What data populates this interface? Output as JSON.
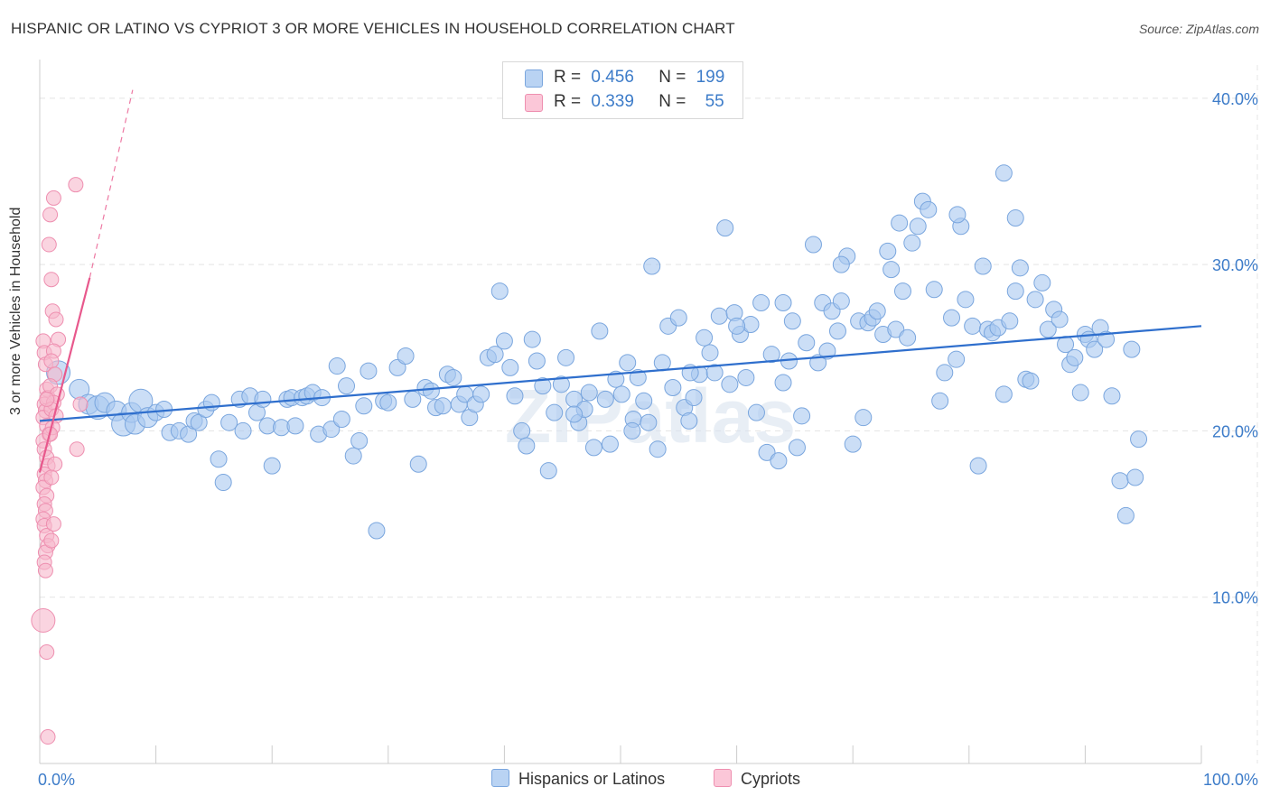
{
  "title": "HISPANIC OR LATINO VS CYPRIOT 3 OR MORE VEHICLES IN HOUSEHOLD CORRELATION CHART",
  "source": "Source: ZipAtlas.com",
  "watermark": "ZIPatlas",
  "legend": {
    "rows": [
      {
        "r_label": "R =",
        "r_value": "0.456",
        "n_label": "N =",
        "n_value": "199"
      },
      {
        "r_label": "R =",
        "r_value": "0.339",
        "n_label": "N =",
        "n_value": "55"
      }
    ]
  },
  "bottom_legend": {
    "series1": "Hispanics or Latinos",
    "series2": "Cypriots"
  },
  "colors": {
    "blue_fill": "#a9c8f0",
    "blue_stroke": "#7aa6de",
    "blue_line": "#2f6fcd",
    "pink_fill": "#f7b8cc",
    "pink_stroke": "#ee8fb0",
    "pink_line": "#e8588c",
    "axis_text": "#3d7cc9",
    "grid": "#e4e4e4"
  },
  "chart_data": {
    "type": "scatter",
    "title": "HISPANIC OR LATINO VS CYPRIOT 3 OR MORE VEHICLES IN HOUSEHOLD CORRELATION CHART",
    "xlabel": "",
    "ylabel": "3 or more Vehicles in Household",
    "xlim": [
      0,
      100
    ],
    "ylim": [
      0,
      42
    ],
    "x_tick_labels": [
      "0.0%",
      "100.0%"
    ],
    "y_ticks": [
      10,
      20,
      30,
      40
    ],
    "y_tick_labels": [
      "10.0%",
      "20.0%",
      "30.0%",
      "40.0%"
    ],
    "grid": true,
    "legend_position": "top-center",
    "series": [
      {
        "name": "Hispanics or Latinos",
        "R": 0.456,
        "N": 199,
        "trend": {
          "x": [
            0,
            100
          ],
          "y": [
            20.6,
            26.3
          ],
          "style": "solid"
        },
        "points": [
          [
            1.6,
            23.5
          ],
          [
            3.4,
            22.5
          ],
          [
            4.2,
            21.6
          ],
          [
            5.0,
            21.4
          ],
          [
            5.6,
            21.7
          ],
          [
            6.6,
            21.2
          ],
          [
            7.2,
            20.4
          ],
          [
            7.9,
            21.1
          ],
          [
            8.2,
            20.4
          ],
          [
            8.7,
            21.8
          ],
          [
            9.3,
            20.8
          ],
          [
            10.0,
            21.1
          ],
          [
            10.7,
            21.3
          ],
          [
            11.2,
            19.9
          ],
          [
            12.0,
            20.0
          ],
          [
            12.8,
            19.8
          ],
          [
            13.3,
            20.6
          ],
          [
            13.7,
            20.5
          ],
          [
            14.3,
            21.3
          ],
          [
            14.8,
            21.7
          ],
          [
            15.4,
            18.3
          ],
          [
            15.8,
            16.9
          ],
          [
            16.3,
            20.5
          ],
          [
            17.2,
            21.9
          ],
          [
            17.5,
            20.0
          ],
          [
            18.1,
            22.1
          ],
          [
            18.7,
            21.1
          ],
          [
            19.2,
            21.9
          ],
          [
            19.6,
            20.3
          ],
          [
            20.0,
            17.9
          ],
          [
            20.8,
            20.2
          ],
          [
            21.3,
            21.9
          ],
          [
            21.7,
            22.0
          ],
          [
            22.0,
            20.3
          ],
          [
            22.6,
            22.0
          ],
          [
            23.0,
            22.1
          ],
          [
            23.5,
            22.3
          ],
          [
            24.0,
            19.8
          ],
          [
            24.3,
            22.0
          ],
          [
            25.1,
            20.1
          ],
          [
            25.6,
            23.9
          ],
          [
            26.0,
            20.7
          ],
          [
            26.4,
            22.7
          ],
          [
            27.0,
            18.5
          ],
          [
            27.5,
            19.4
          ],
          [
            27.9,
            21.5
          ],
          [
            28.3,
            23.6
          ],
          [
            29.0,
            14.0
          ],
          [
            29.6,
            21.8
          ],
          [
            30.0,
            21.7
          ],
          [
            30.8,
            23.8
          ],
          [
            31.5,
            24.5
          ],
          [
            32.1,
            21.9
          ],
          [
            32.6,
            18.0
          ],
          [
            33.2,
            22.6
          ],
          [
            33.7,
            22.4
          ],
          [
            34.1,
            21.4
          ],
          [
            34.7,
            21.5
          ],
          [
            35.1,
            23.4
          ],
          [
            35.6,
            23.2
          ],
          [
            36.1,
            21.6
          ],
          [
            36.6,
            22.2
          ],
          [
            37.0,
            20.8
          ],
          [
            37.5,
            21.6
          ],
          [
            38.0,
            22.2
          ],
          [
            38.6,
            24.4
          ],
          [
            39.2,
            24.6
          ],
          [
            39.6,
            28.4
          ],
          [
            40.0,
            25.4
          ],
          [
            40.5,
            23.8
          ],
          [
            40.9,
            22.1
          ],
          [
            41.5,
            20.0
          ],
          [
            41.9,
            19.1
          ],
          [
            42.4,
            25.5
          ],
          [
            42.8,
            24.2
          ],
          [
            43.3,
            22.7
          ],
          [
            43.8,
            17.6
          ],
          [
            44.3,
            21.1
          ],
          [
            44.9,
            22.8
          ],
          [
            45.3,
            24.4
          ],
          [
            46.0,
            21.9
          ],
          [
            46.4,
            20.5
          ],
          [
            46.9,
            21.3
          ],
          [
            47.3,
            22.3
          ],
          [
            47.7,
            19.0
          ],
          [
            48.2,
            26.0
          ],
          [
            48.7,
            21.9
          ],
          [
            49.1,
            19.2
          ],
          [
            49.6,
            23.1
          ],
          [
            50.1,
            22.2
          ],
          [
            50.6,
            24.1
          ],
          [
            51.1,
            20.7
          ],
          [
            51.5,
            23.2
          ],
          [
            52.0,
            21.8
          ],
          [
            52.4,
            20.5
          ],
          [
            52.7,
            29.9
          ],
          [
            53.2,
            18.9
          ],
          [
            53.6,
            24.1
          ],
          [
            54.1,
            26.3
          ],
          [
            54.5,
            22.6
          ],
          [
            55.0,
            26.8
          ],
          [
            55.5,
            21.4
          ],
          [
            55.9,
            20.6
          ],
          [
            56.3,
            22.0
          ],
          [
            56.8,
            23.4
          ],
          [
            57.2,
            25.6
          ],
          [
            57.7,
            24.7
          ],
          [
            58.1,
            23.5
          ],
          [
            58.5,
            26.9
          ],
          [
            59.0,
            32.2
          ],
          [
            59.4,
            22.8
          ],
          [
            59.8,
            27.1
          ],
          [
            60.3,
            25.8
          ],
          [
            60.8,
            23.2
          ],
          [
            61.2,
            26.4
          ],
          [
            61.7,
            21.1
          ],
          [
            62.1,
            27.7
          ],
          [
            62.6,
            18.7
          ],
          [
            63.0,
            24.6
          ],
          [
            63.6,
            18.2
          ],
          [
            64.0,
            22.9
          ],
          [
            64.5,
            24.2
          ],
          [
            64.8,
            26.6
          ],
          [
            65.2,
            19.0
          ],
          [
            65.6,
            20.9
          ],
          [
            66.0,
            25.3
          ],
          [
            66.6,
            31.2
          ],
          [
            67.0,
            24.1
          ],
          [
            67.4,
            27.7
          ],
          [
            67.8,
            24.8
          ],
          [
            68.2,
            27.2
          ],
          [
            68.7,
            26.0
          ],
          [
            69.0,
            27.8
          ],
          [
            69.5,
            30.5
          ],
          [
            70.0,
            19.2
          ],
          [
            70.5,
            26.6
          ],
          [
            70.9,
            20.8
          ],
          [
            71.3,
            26.5
          ],
          [
            71.7,
            26.8
          ],
          [
            72.1,
            27.2
          ],
          [
            72.6,
            25.8
          ],
          [
            73.0,
            30.8
          ],
          [
            73.3,
            29.7
          ],
          [
            73.7,
            26.1
          ],
          [
            74.3,
            28.4
          ],
          [
            74.7,
            25.6
          ],
          [
            75.1,
            31.3
          ],
          [
            75.6,
            32.3
          ],
          [
            76.0,
            33.8
          ],
          [
            76.5,
            33.3
          ],
          [
            77.0,
            28.5
          ],
          [
            77.5,
            21.8
          ],
          [
            77.9,
            23.5
          ],
          [
            78.5,
            26.8
          ],
          [
            78.9,
            24.3
          ],
          [
            79.3,
            32.3
          ],
          [
            79.7,
            27.9
          ],
          [
            80.3,
            26.3
          ],
          [
            80.8,
            17.9
          ],
          [
            81.2,
            29.9
          ],
          [
            81.6,
            26.1
          ],
          [
            82.0,
            25.9
          ],
          [
            82.5,
            26.2
          ],
          [
            83.0,
            22.2
          ],
          [
            83.5,
            26.6
          ],
          [
            84.0,
            28.4
          ],
          [
            84.4,
            29.8
          ],
          [
            84.9,
            23.1
          ],
          [
            85.3,
            23.0
          ],
          [
            85.7,
            27.9
          ],
          [
            86.3,
            28.9
          ],
          [
            86.8,
            26.1
          ],
          [
            87.3,
            27.3
          ],
          [
            87.8,
            26.7
          ],
          [
            88.3,
            25.2
          ],
          [
            88.7,
            24.0
          ],
          [
            89.1,
            24.4
          ],
          [
            89.6,
            22.3
          ],
          [
            90.0,
            25.8
          ],
          [
            90.3,
            25.5
          ],
          [
            90.8,
            24.9
          ],
          [
            91.3,
            26.2
          ],
          [
            91.8,
            25.5
          ],
          [
            92.3,
            22.1
          ],
          [
            93.0,
            17.0
          ],
          [
            93.5,
            14.9
          ],
          [
            94.0,
            24.9
          ],
          [
            94.6,
            19.5
          ],
          [
            94.3,
            17.2
          ],
          [
            84.0,
            32.8
          ],
          [
            83.0,
            35.5
          ],
          [
            79.0,
            33.0
          ],
          [
            74.0,
            32.5
          ],
          [
            69.0,
            30.0
          ],
          [
            64.0,
            27.7
          ],
          [
            60.0,
            26.3
          ],
          [
            56.0,
            23.5
          ],
          [
            51.0,
            20.0
          ],
          [
            46.0,
            21.0
          ]
        ]
      },
      {
        "name": "Cypriots",
        "R": 0.339,
        "N": 55,
        "trend": {
          "x": [
            0,
            4.3
          ],
          "y": [
            17.5,
            29.2
          ],
          "style": "solid",
          "extension": {
            "x": [
              4.3,
              8.0
            ],
            "y": [
              29.2,
              40.5
            ],
            "style": "dashed"
          }
        },
        "points": [
          [
            0.3,
            25.4
          ],
          [
            0.4,
            24.7
          ],
          [
            0.5,
            24.0
          ],
          [
            0.6,
            22.5
          ],
          [
            0.7,
            22.0
          ],
          [
            0.4,
            21.6
          ],
          [
            0.5,
            21.2
          ],
          [
            0.3,
            20.8
          ],
          [
            0.6,
            20.3
          ],
          [
            0.8,
            19.8
          ],
          [
            0.3,
            19.4
          ],
          [
            0.4,
            18.9
          ],
          [
            0.6,
            18.4
          ],
          [
            0.7,
            17.9
          ],
          [
            0.4,
            17.4
          ],
          [
            0.5,
            17.0
          ],
          [
            0.3,
            16.6
          ],
          [
            0.6,
            16.1
          ],
          [
            0.4,
            15.6
          ],
          [
            0.5,
            15.2
          ],
          [
            0.3,
            14.7
          ],
          [
            0.4,
            14.3
          ],
          [
            0.6,
            13.7
          ],
          [
            0.7,
            13.1
          ],
          [
            0.5,
            12.7
          ],
          [
            0.4,
            12.1
          ],
          [
            0.5,
            11.6
          ],
          [
            0.6,
            6.7
          ],
          [
            0.7,
            1.6
          ],
          [
            0.3,
            8.6
          ],
          [
            0.8,
            31.2
          ],
          [
            0.9,
            33.0
          ],
          [
            1.2,
            34.0
          ],
          [
            1.0,
            29.1
          ],
          [
            1.1,
            27.2
          ],
          [
            1.4,
            26.7
          ],
          [
            1.6,
            25.5
          ],
          [
            1.2,
            24.8
          ],
          [
            1.0,
            24.2
          ],
          [
            1.3,
            23.4
          ],
          [
            0.9,
            22.7
          ],
          [
            1.5,
            22.2
          ],
          [
            1.2,
            21.7
          ],
          [
            1.0,
            21.3
          ],
          [
            1.4,
            20.9
          ],
          [
            1.1,
            20.2
          ],
          [
            0.9,
            19.8
          ],
          [
            1.3,
            18.0
          ],
          [
            1.0,
            17.2
          ],
          [
            1.2,
            14.4
          ],
          [
            1.0,
            13.4
          ],
          [
            3.1,
            34.8
          ],
          [
            3.2,
            18.9
          ],
          [
            3.5,
            21.6
          ],
          [
            0.6,
            21.9
          ]
        ]
      }
    ]
  }
}
